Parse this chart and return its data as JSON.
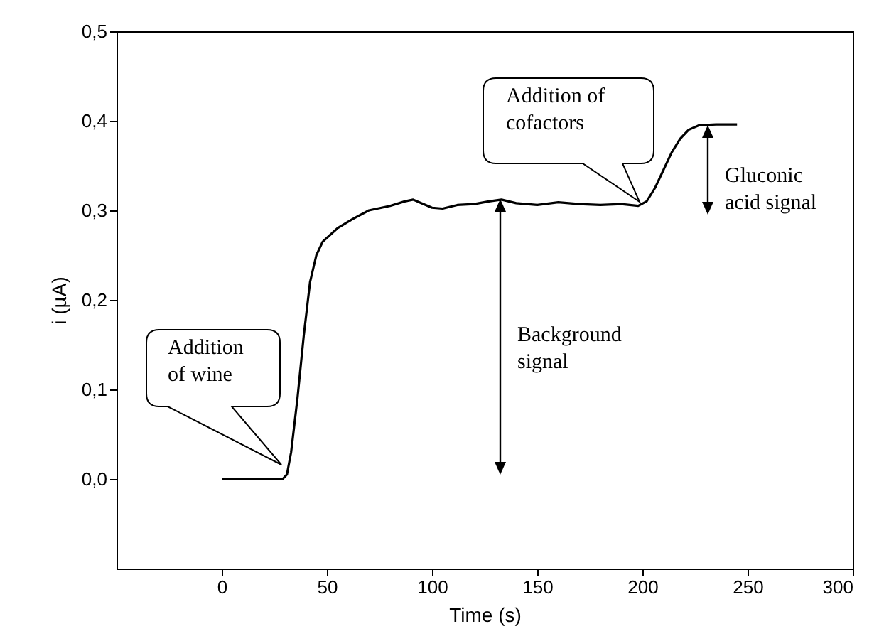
{
  "chart_data": {
    "type": "line",
    "xlabel": "Time (s)",
    "ylabel": "i (µA)",
    "x": [
      0,
      20,
      29,
      31,
      33,
      36,
      39,
      42,
      45,
      48,
      55,
      62,
      70,
      80,
      87,
      91,
      95,
      100,
      105,
      112,
      120,
      127,
      133,
      140,
      150,
      160,
      170,
      180,
      190,
      198,
      202,
      206,
      210,
      214,
      218,
      222,
      227,
      235,
      245
    ],
    "series": [
      {
        "color": "#000000",
        "values": [
          0,
          0,
          0,
          0.005,
          0.03,
          0.09,
          0.16,
          0.22,
          0.25,
          0.265,
          0.28,
          0.29,
          0.3,
          0.305,
          0.31,
          0.312,
          0.308,
          0.303,
          0.302,
          0.306,
          0.307,
          0.31,
          0.312,
          0.308,
          0.306,
          0.309,
          0.307,
          0.306,
          0.307,
          0.305,
          0.31,
          0.325,
          0.345,
          0.365,
          0.38,
          0.39,
          0.395,
          0.396,
          0.396
        ]
      }
    ],
    "xlim": [
      -50,
      300
    ],
    "xticks": [
      0,
      50,
      100,
      150,
      200,
      250,
      300
    ],
    "ylim": [
      -0.1,
      0.5
    ],
    "yticks": [
      {
        "value": 0,
        "label": "0,0"
      },
      {
        "value": 0.1,
        "label": "0,1"
      },
      {
        "value": 0.2,
        "label": "0,2"
      },
      {
        "value": 0.3,
        "label": "0,3"
      },
      {
        "value": 0.4,
        "label": "0,4"
      },
      {
        "value": 0.5,
        "label": "0,5"
      }
    ],
    "grid": false,
    "marker": "none",
    "line_style": "solid",
    "annotations": [
      "Addition\nof wine",
      "Addition of\ncofactors",
      "Background\nsignal",
      "Gluconic\nacid signal"
    ]
  }
}
